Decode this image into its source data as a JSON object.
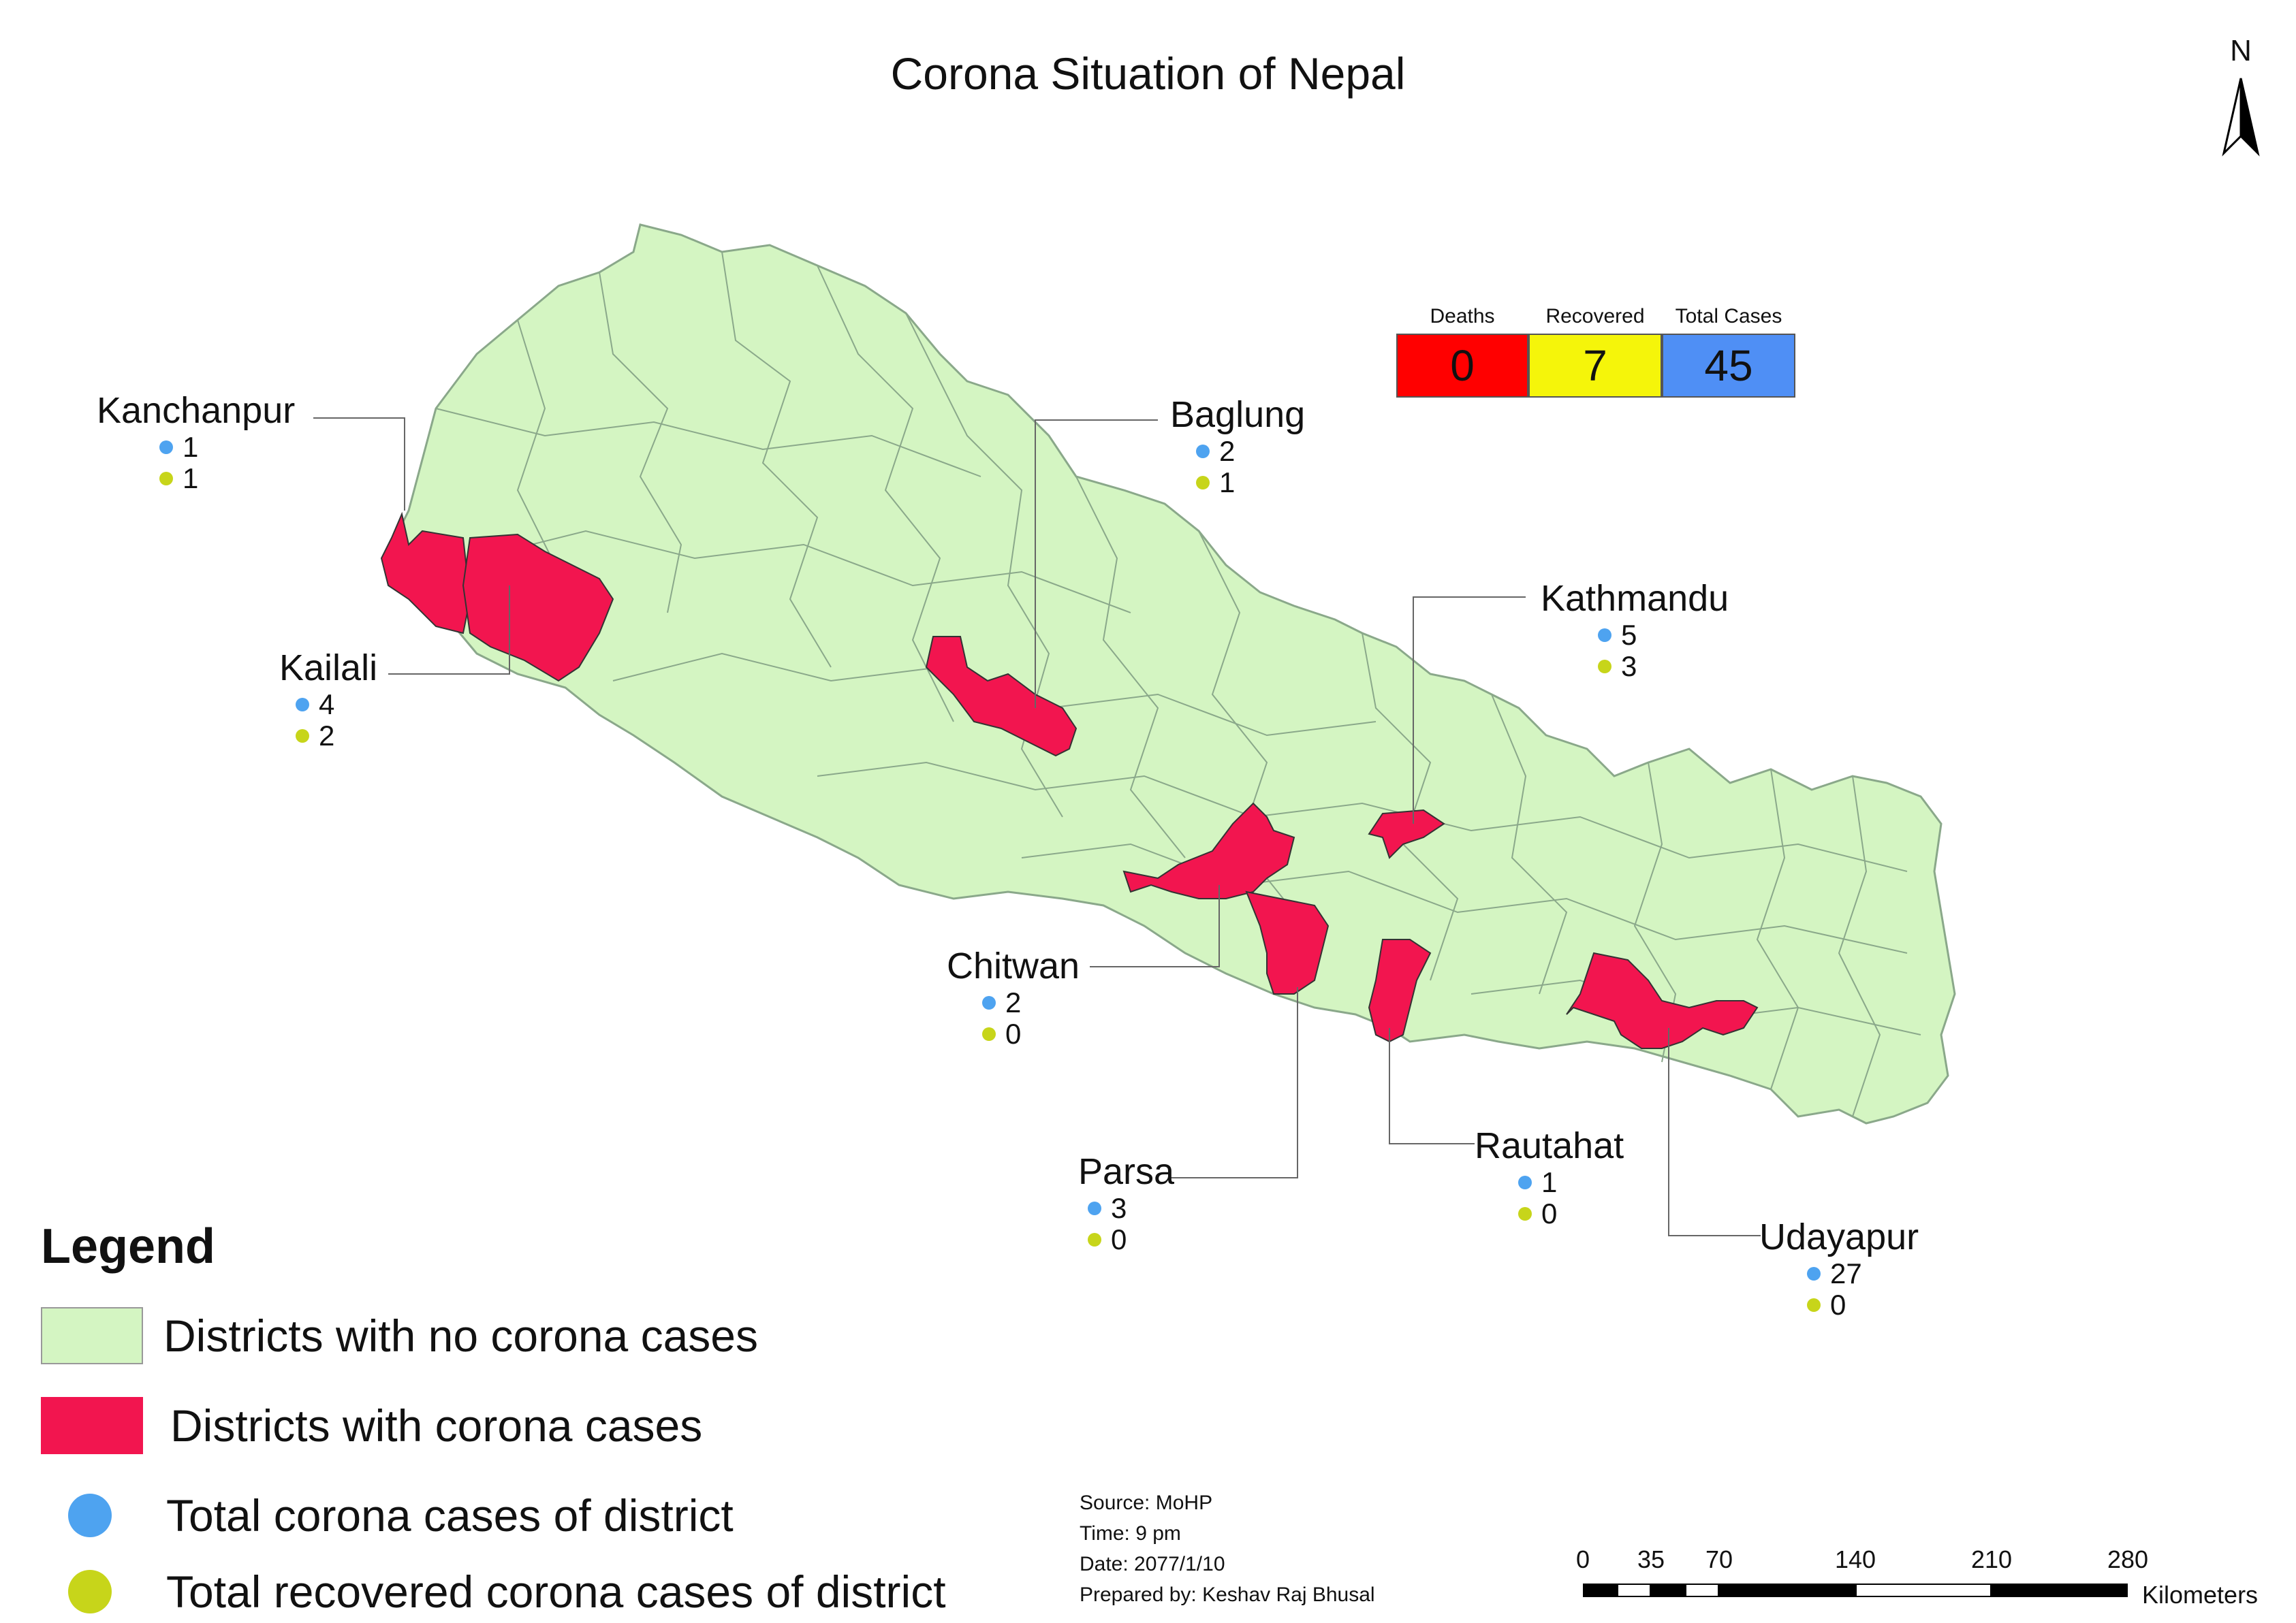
{
  "title": "Corona Situation of Nepal",
  "north_arrow": {
    "label": "N",
    "icon": "north-arrow-icon"
  },
  "summary": {
    "deaths": {
      "label": "Deaths",
      "value": "0",
      "color": "#ff0000"
    },
    "recovered": {
      "label": "Recovered",
      "value": "7",
      "color": "#f5f50a"
    },
    "total": {
      "label": "Total Cases",
      "value": "45",
      "color": "#4f8ff5"
    }
  },
  "colors": {
    "no_cases": "#d4f5c2",
    "with_cases": "#f2154f",
    "total_dot": "#4ea3f0",
    "recovered_dot": "#c7d51a",
    "boundary": "#8aa88a",
    "leader": "#666666"
  },
  "districts": [
    {
      "name": "Kanchanpur",
      "total": "1",
      "recovered": "1"
    },
    {
      "name": "Kailali",
      "total": "4",
      "recovered": "2"
    },
    {
      "name": "Baglung",
      "total": "2",
      "recovered": "1"
    },
    {
      "name": "Kathmandu",
      "total": "5",
      "recovered": "3"
    },
    {
      "name": "Chitwan",
      "total": "2",
      "recovered": "0"
    },
    {
      "name": "Parsa",
      "total": "3",
      "recovered": "0"
    },
    {
      "name": "Rautahat",
      "total": "1",
      "recovered": "0"
    },
    {
      "name": "Udayapur",
      "total": "27",
      "recovered": "0"
    }
  ],
  "legend": {
    "title": "Legend",
    "no_cases": "Districts with no corona cases",
    "with_cases": "Districts with corona cases",
    "total_dot": "Total corona cases of district",
    "recovered_dot": "Total recovered corona cases of district"
  },
  "source": {
    "line1": "Source: MoHP",
    "line2": "Time: 9 pm",
    "line3": "Date: 2077/1/10",
    "line4": "Prepared by: Keshav Raj Bhusal"
  },
  "scale": {
    "ticks": [
      "0",
      "35",
      "70",
      "140",
      "210",
      "280"
    ],
    "unit": "Kilometers"
  }
}
